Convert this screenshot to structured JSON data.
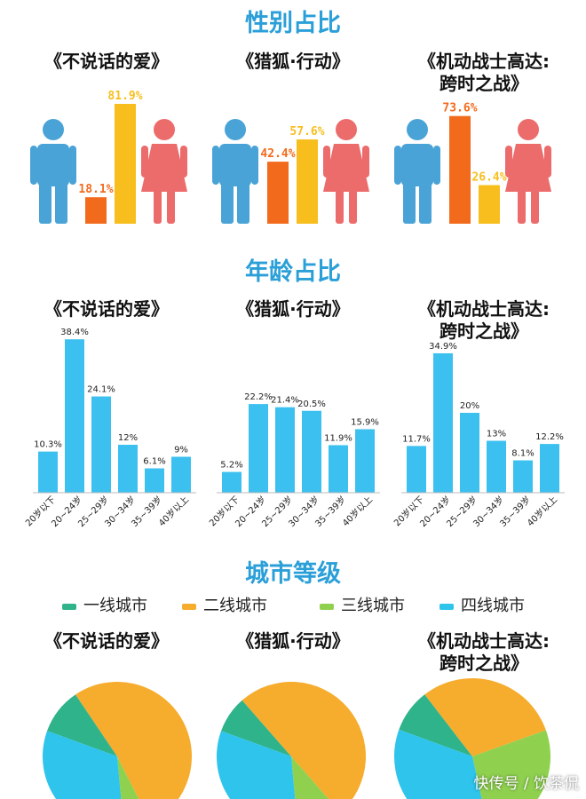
{
  "colors": {
    "male": "#4aa3d6",
    "female": "#ec6b6b",
    "bar_orange": "#f26b1d",
    "bar_yellow": "#f7be1e",
    "age_bar": "#3cc0f0",
    "title": "#2a9fd8"
  },
  "sections": {
    "gender": "性别占比",
    "age": "年龄占比",
    "city": "城市等级"
  },
  "movies": [
    {
      "title": "《不说话的爱》"
    },
    {
      "title": "《猎狐·行动》"
    },
    {
      "title": "《机动战士高达:\n跨时之战》"
    }
  ],
  "legend": [
    {
      "label": "一线城市",
      "color": "#2fb38a",
      "icon": "line-swatch"
    },
    {
      "label": "二线城市",
      "color": "#f6ac2d",
      "icon": "line-swatch"
    },
    {
      "label": "三线城市",
      "color": "#8fd14f",
      "icon": "line-swatch"
    },
    {
      "label": "四线城市",
      "color": "#2ec4ec",
      "icon": "line-swatch"
    }
  ],
  "watermark": "快传号 / 饮茶侃",
  "chart_data": [
    {
      "type": "bar",
      "section": "gender",
      "movie": 0,
      "categories": [
        "male",
        "female"
      ],
      "values": [
        18.1,
        81.9
      ],
      "labels": [
        "18.1%",
        "81.9%"
      ],
      "colors": [
        "#f26b1d",
        "#f7be1e"
      ],
      "icons": [
        "male-icon",
        "female-icon"
      ]
    },
    {
      "type": "bar",
      "section": "gender",
      "movie": 1,
      "categories": [
        "male",
        "female"
      ],
      "values": [
        42.4,
        57.6
      ],
      "labels": [
        "42.4%",
        "57.6%"
      ],
      "colors": [
        "#f26b1d",
        "#f7be1e"
      ],
      "icons": [
        "male-icon",
        "female-icon"
      ]
    },
    {
      "type": "bar",
      "section": "gender",
      "movie": 2,
      "categories": [
        "male",
        "female"
      ],
      "values": [
        73.6,
        26.4
      ],
      "labels": [
        "73.6%",
        "26.4%"
      ],
      "colors": [
        "#f26b1d",
        "#f7be1e"
      ],
      "icons": [
        "male-icon",
        "female-icon"
      ]
    },
    {
      "type": "bar",
      "section": "age",
      "movie": 0,
      "categories": [
        "20岁以下",
        "20~24岁",
        "25~29岁",
        "30~34岁",
        "35~39岁",
        "40岁以上"
      ],
      "values": [
        10.3,
        38.4,
        24.1,
        12,
        6.1,
        9
      ],
      "labels": [
        "10.3%",
        "38.4%",
        "24.1%",
        "12%",
        "6.1%",
        "9%"
      ],
      "ylim": [
        0,
        40
      ]
    },
    {
      "type": "bar",
      "section": "age",
      "movie": 1,
      "categories": [
        "20岁以下",
        "20~24岁",
        "25~29岁",
        "30~34岁",
        "35~39岁",
        "40岁以上"
      ],
      "values": [
        5.2,
        22.2,
        21.4,
        20.5,
        11.9,
        15.9
      ],
      "labels": [
        "5.2%",
        "22.2%",
        "21.4%",
        "20.5%",
        "11.9%",
        "15.9%"
      ],
      "ylim": [
        0,
        40
      ]
    },
    {
      "type": "bar",
      "section": "age",
      "movie": 2,
      "categories": [
        "20岁以下",
        "20~24岁",
        "25~29岁",
        "30~34岁",
        "35~39岁",
        "40岁以上"
      ],
      "values": [
        11.7,
        34.9,
        20,
        13,
        8.1,
        12.2
      ],
      "labels": [
        "11.7%",
        "34.9%",
        "20%",
        "13%",
        "8.1%",
        "12.2%"
      ],
      "ylim": [
        0,
        40
      ]
    },
    {
      "type": "pie",
      "section": "city",
      "movie": 0,
      "categories": [
        "一线城市",
        "二线城市",
        "三线城市",
        "四线城市"
      ],
      "values": [
        10,
        52,
        6,
        32
      ]
    },
    {
      "type": "pie",
      "section": "city",
      "movie": 1,
      "categories": [
        "一线城市",
        "二线城市",
        "三线城市",
        "四线城市"
      ],
      "values": [
        8,
        50,
        10,
        32
      ]
    },
    {
      "type": "pie",
      "section": "city",
      "movie": 2,
      "categories": [
        "一线城市",
        "二线城市",
        "三线城市",
        "四线城市"
      ],
      "values": [
        9,
        30,
        27,
        34
      ]
    }
  ]
}
